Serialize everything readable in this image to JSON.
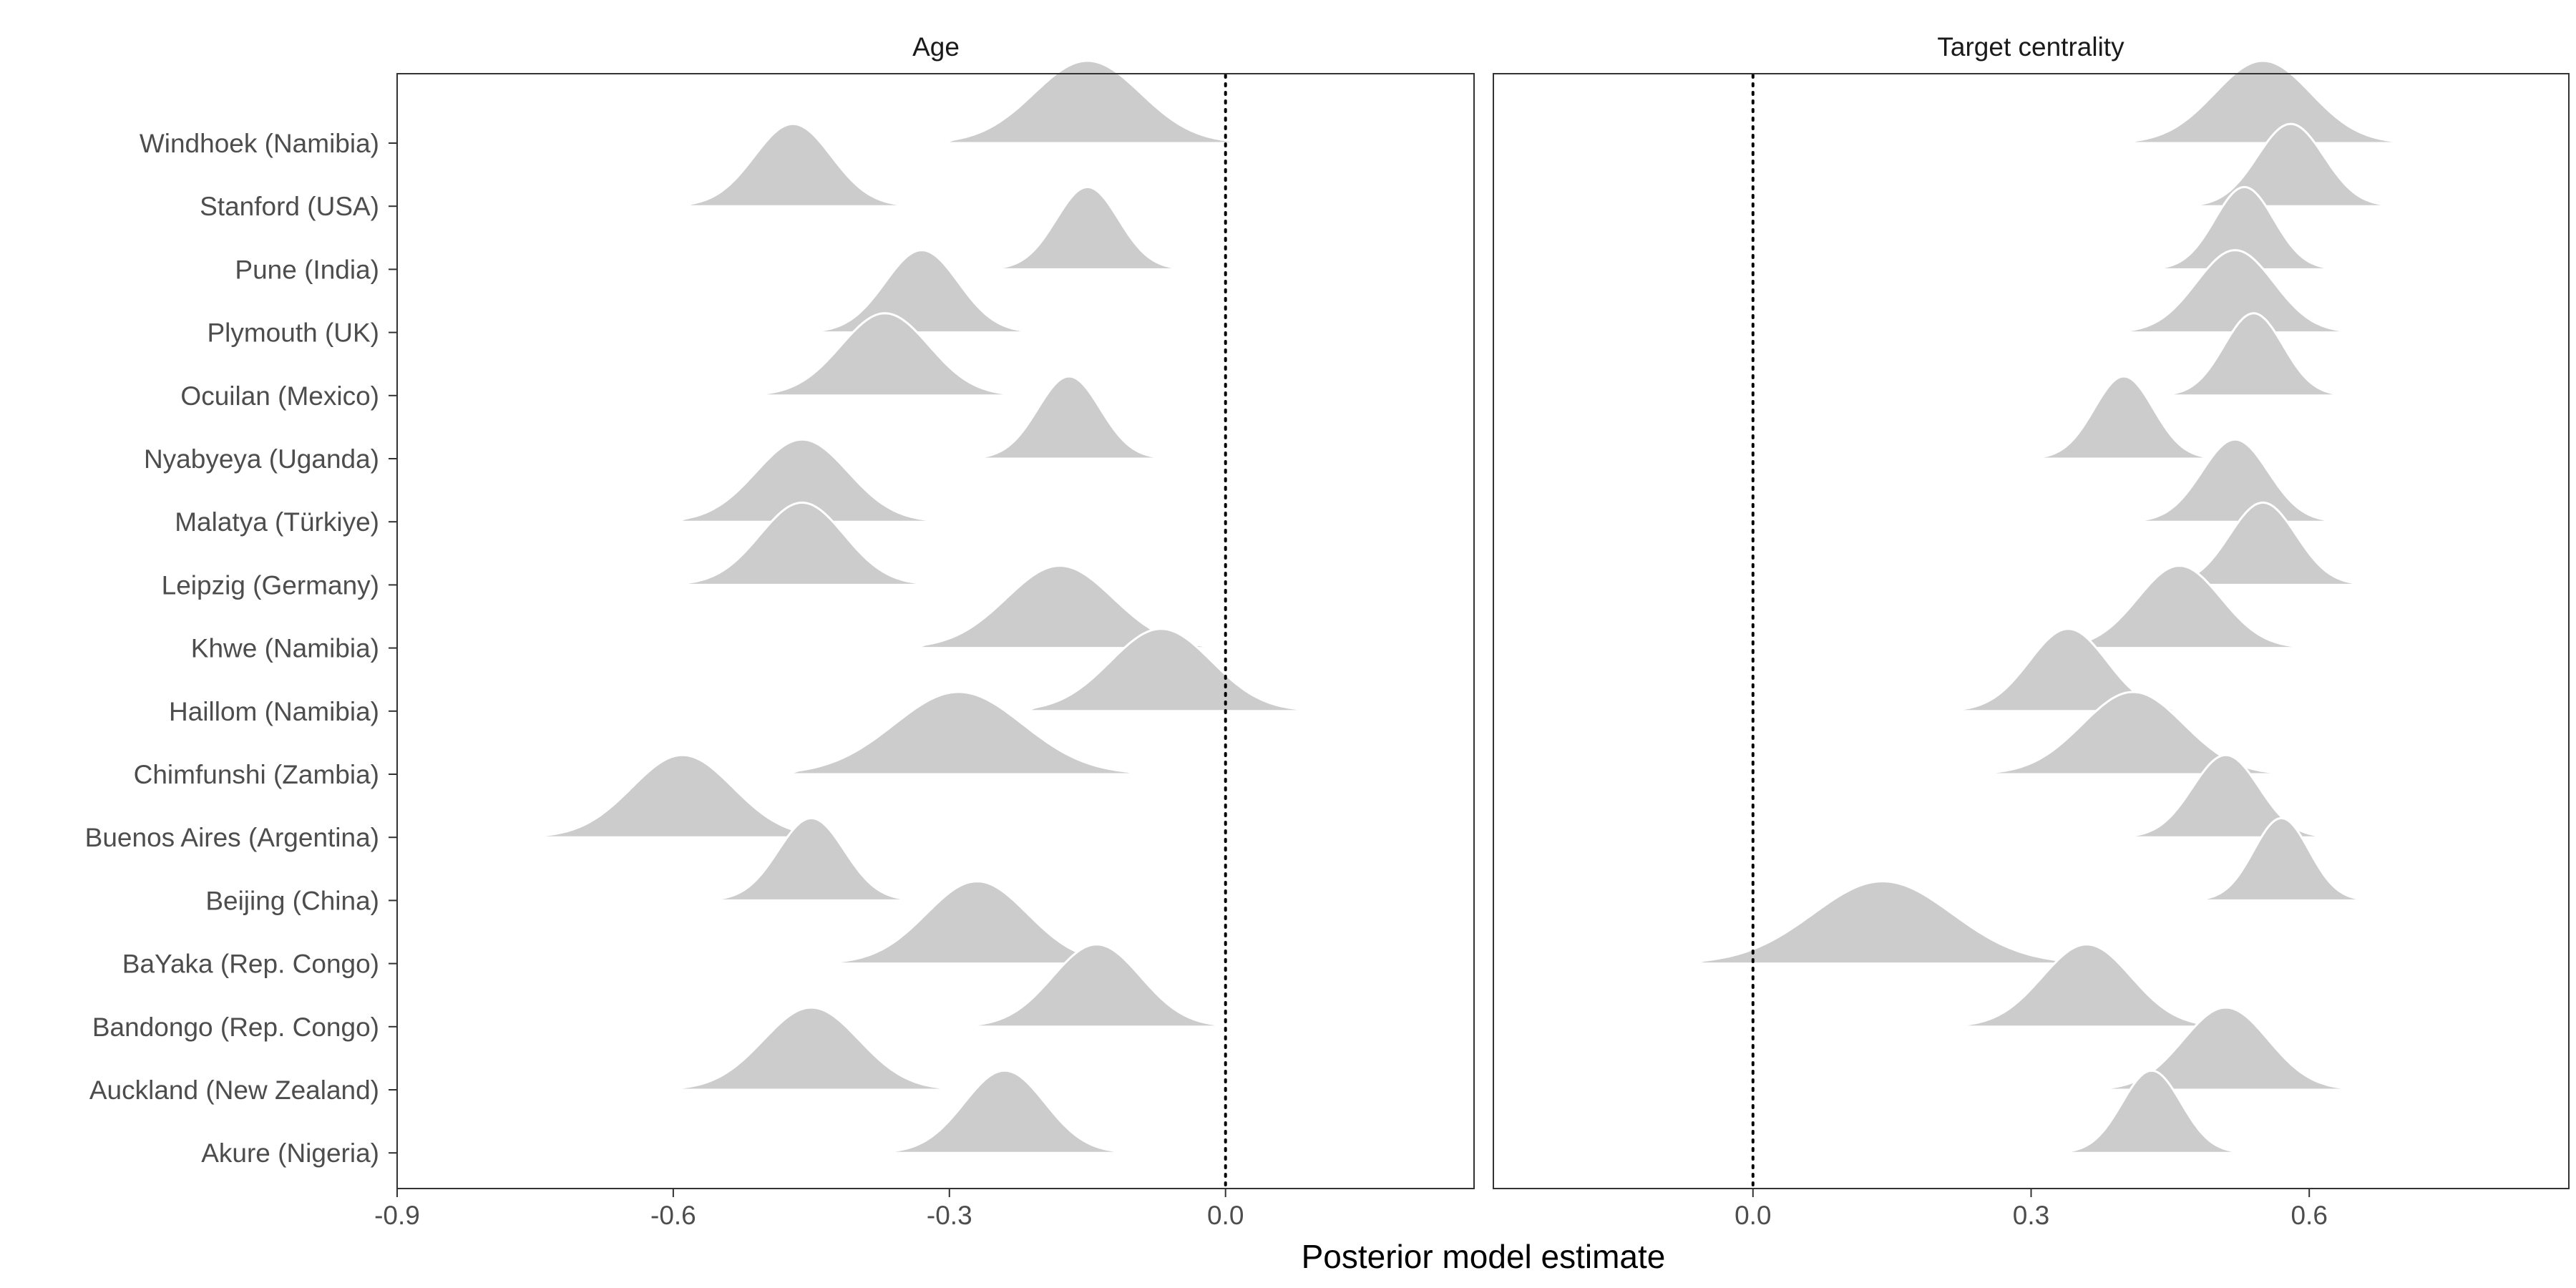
{
  "chart_data": {
    "type": "ridgeline",
    "xlabel": "Posterior model estimate",
    "ylabel": "",
    "categories": [
      "Windhoek (Namibia)",
      "Stanford (USA)",
      "Pune (India)",
      "Plymouth (UK)",
      "Ocuilan (Mexico)",
      "Nyabyeya (Uganda)",
      "Malatya (Türkiye)",
      "Leipzig (Germany)",
      "Khwe (Namibia)",
      "Haillom (Namibia)",
      "Chimfunshi (Zambia)",
      "Buenos Aires (Argentina)",
      "Beijing (China)",
      "BaYaka (Rep. Congo)",
      "Bandongo (Rep. Congo)",
      "Auckland (New Zealand)",
      "Akure (Nigeria)"
    ],
    "colors": {
      "density_fill": "#cccccc",
      "density_outline": "#ffffff",
      "reference_line": "#000000"
    },
    "reference_line_x": 0.0,
    "grid": false,
    "panels": [
      {
        "title": "Age",
        "xlim": [
          -0.9,
          0.27
        ],
        "xticks": [
          -0.9,
          -0.6,
          -0.3,
          0.0
        ],
        "xtick_labels": [
          "-0.9",
          "-0.6",
          "-0.3",
          "0.0"
        ],
        "series": [
          {
            "name": "Windhoek (Namibia)",
            "mean": -0.15,
            "sd": 0.058,
            "min": -0.31,
            "max": 0.03
          },
          {
            "name": "Stanford (USA)",
            "mean": -0.47,
            "sd": 0.042,
            "min": -0.59,
            "max": -0.34
          },
          {
            "name": "Pune (India)",
            "mean": -0.15,
            "sd": 0.034,
            "min": -0.25,
            "max": -0.04
          },
          {
            "name": "Plymouth (UK)",
            "mean": -0.33,
            "sd": 0.04,
            "min": -0.45,
            "max": -0.21
          },
          {
            "name": "Ocuilan (Mexico)",
            "mean": -0.37,
            "sd": 0.048,
            "min": -0.51,
            "max": -0.22
          },
          {
            "name": "Nyabyeya (Uganda)",
            "mean": -0.17,
            "sd": 0.034,
            "min": -0.27,
            "max": -0.06
          },
          {
            "name": "Malatya (Türkiye)",
            "mean": -0.46,
            "sd": 0.05,
            "min": -0.6,
            "max": -0.28
          },
          {
            "name": "Leipzig (Germany)",
            "mean": -0.46,
            "sd": 0.046,
            "min": -0.6,
            "max": -0.31
          },
          {
            "name": "Khwe (Namibia)",
            "mean": -0.18,
            "sd": 0.058,
            "min": -0.34,
            "max": 0.0
          },
          {
            "name": "Haillom (Namibia)",
            "mean": -0.07,
            "sd": 0.055,
            "min": -0.22,
            "max": 0.1
          },
          {
            "name": "Chimfunshi (Zambia)",
            "mean": -0.29,
            "sd": 0.07,
            "min": -0.48,
            "max": -0.09
          },
          {
            "name": "Buenos Aires (Argentina)",
            "mean": -0.59,
            "sd": 0.055,
            "min": -0.76,
            "max": -0.45
          },
          {
            "name": "Beijing (China)",
            "mean": -0.45,
            "sd": 0.036,
            "min": -0.56,
            "max": -0.34
          },
          {
            "name": "BaYaka (Rep. Congo)",
            "mean": -0.27,
            "sd": 0.055,
            "min": -0.45,
            "max": -0.1
          },
          {
            "name": "Bandongo (Rep. Congo)",
            "mean": -0.14,
            "sd": 0.048,
            "min": -0.3,
            "max": 0.0
          },
          {
            "name": "Auckland (New Zealand)",
            "mean": -0.45,
            "sd": 0.052,
            "min": -0.61,
            "max": -0.29
          },
          {
            "name": "Akure (Nigeria)",
            "mean": -0.24,
            "sd": 0.044,
            "min": -0.38,
            "max": -0.11
          }
        ]
      },
      {
        "title": "Target centrality",
        "xlim": [
          -0.28,
          0.88
        ],
        "xticks": [
          0.0,
          0.3,
          0.6
        ],
        "xtick_labels": [
          "0.0",
          "0.3",
          "0.6"
        ],
        "series": [
          {
            "name": "Windhoek (Namibia)",
            "mean": 0.55,
            "sd": 0.052,
            "min": 0.4,
            "max": 0.72
          },
          {
            "name": "Stanford (USA)",
            "mean": 0.58,
            "sd": 0.036,
            "min": 0.47,
            "max": 0.7
          },
          {
            "name": "Pune (India)",
            "mean": 0.53,
            "sd": 0.032,
            "min": 0.43,
            "max": 0.63
          },
          {
            "name": "Plymouth (UK)",
            "mean": 0.52,
            "sd": 0.042,
            "min": 0.39,
            "max": 0.65
          },
          {
            "name": "Ocuilan (Mexico)",
            "mean": 0.54,
            "sd": 0.032,
            "min": 0.44,
            "max": 0.65
          },
          {
            "name": "Nyabyeya (Uganda)",
            "mean": 0.4,
            "sd": 0.032,
            "min": 0.3,
            "max": 0.5
          },
          {
            "name": "Malatya (Türkiye)",
            "mean": 0.52,
            "sd": 0.036,
            "min": 0.4,
            "max": 0.63
          },
          {
            "name": "Leipzig (Germany)",
            "mean": 0.55,
            "sd": 0.036,
            "min": 0.45,
            "max": 0.67
          },
          {
            "name": "Khwe (Namibia)",
            "mean": 0.46,
            "sd": 0.045,
            "min": 0.32,
            "max": 0.61
          },
          {
            "name": "Haillom (Namibia)",
            "mean": 0.34,
            "sd": 0.042,
            "min": 0.21,
            "max": 0.47
          },
          {
            "name": "Chimfunshi (Zambia)",
            "mean": 0.41,
            "sd": 0.055,
            "min": 0.23,
            "max": 0.59
          },
          {
            "name": "Buenos Aires (Argentina)",
            "mean": 0.51,
            "sd": 0.036,
            "min": 0.39,
            "max": 0.62
          },
          {
            "name": "Beijing (China)",
            "mean": 0.57,
            "sd": 0.03,
            "min": 0.47,
            "max": 0.67
          },
          {
            "name": "BaYaka (Rep. Congo)",
            "mean": 0.14,
            "sd": 0.075,
            "min": -0.07,
            "max": 0.36
          },
          {
            "name": "Bandongo (Rep. Congo)",
            "mean": 0.36,
            "sd": 0.048,
            "min": 0.19,
            "max": 0.52
          },
          {
            "name": "Auckland (New Zealand)",
            "mean": 0.51,
            "sd": 0.046,
            "min": 0.37,
            "max": 0.66
          },
          {
            "name": "Akure (Nigeria)",
            "mean": 0.43,
            "sd": 0.032,
            "min": 0.33,
            "max": 0.53
          }
        ]
      }
    ]
  }
}
